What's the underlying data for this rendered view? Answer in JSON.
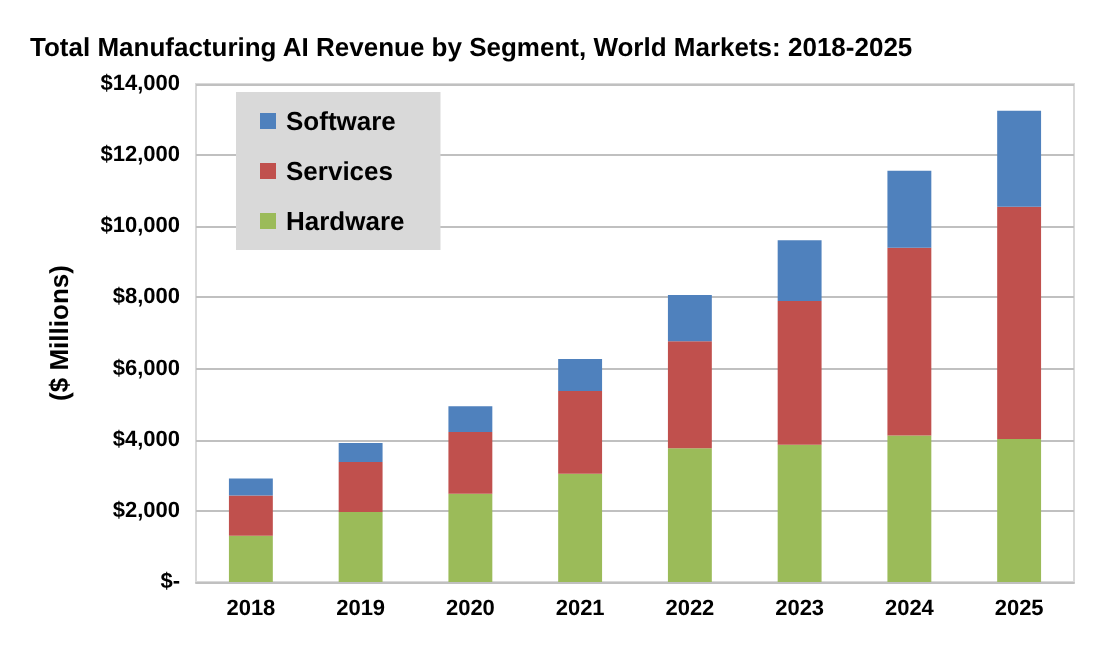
{
  "chart_data": {
    "type": "bar",
    "title": "Total Manufacturing AI Revenue by Segment, World Markets: 2018-2025",
    "ylabel": "($ Millions)",
    "categories": [
      "2018",
      "2019",
      "2020",
      "2021",
      "2022",
      "2023",
      "2024",
      "2025"
    ],
    "stacked": true,
    "series": [
      {
        "name": "Hardware",
        "color": "#9bbb59",
        "values": [
          1300,
          1970,
          2480,
          3040,
          3760,
          3860,
          4120,
          4020
        ]
      },
      {
        "name": "Services",
        "color": "#c0504d",
        "values": [
          1130,
          1400,
          1740,
          2330,
          3010,
          4040,
          5280,
          6530
        ]
      },
      {
        "name": "Software",
        "color": "#4f81bd",
        "values": [
          480,
          540,
          720,
          900,
          1300,
          1710,
          2160,
          2700
        ]
      }
    ],
    "ylim": [
      0,
      14000
    ],
    "yticks": [
      {
        "value": 0,
        "label": "$-"
      },
      {
        "value": 2000,
        "label": "$2,000"
      },
      {
        "value": 4000,
        "label": "$4,000"
      },
      {
        "value": 6000,
        "label": "$6,000"
      },
      {
        "value": 8000,
        "label": "$8,000"
      },
      {
        "value": 10000,
        "label": "$10,000"
      },
      {
        "value": 12000,
        "label": "$12,000"
      },
      {
        "value": 14000,
        "label": "$14,000"
      }
    ],
    "grid": "y",
    "legend": "top left"
  }
}
